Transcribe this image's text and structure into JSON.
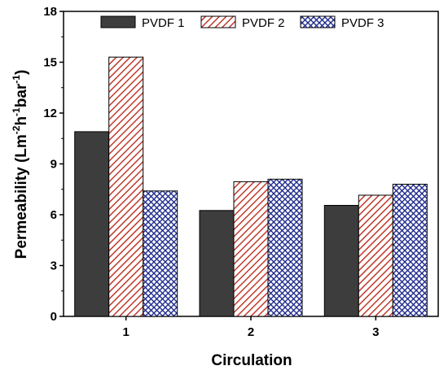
{
  "chart_data": {
    "type": "bar",
    "categories": [
      "1",
      "2",
      "3"
    ],
    "series": [
      {
        "name": "PVDF 1",
        "values": [
          10.9,
          6.25,
          6.55
        ],
        "color": "#3d3d3d",
        "pattern": "solid"
      },
      {
        "name": "PVDF 2",
        "values": [
          15.3,
          7.95,
          7.15
        ],
        "color": "#c0392b",
        "pattern": "diagonal-hatch"
      },
      {
        "name": "PVDF 3",
        "values": [
          7.4,
          8.1,
          7.8
        ],
        "color": "#1f2b8c",
        "pattern": "crosshatch"
      }
    ],
    "xlabel": "Circulation",
    "ylabel": {
      "base": "Permeability (Lm",
      "sup1": "-2",
      "mid1": "h",
      "sup2": "-1",
      "mid2": "bar",
      "sup3": "-1",
      "end": ")"
    },
    "ylim": [
      0,
      18
    ],
    "yticks": [
      "0",
      "3",
      "6",
      "9",
      "12",
      "15",
      "18"
    ],
    "legend_position": "top",
    "grid": false
  }
}
